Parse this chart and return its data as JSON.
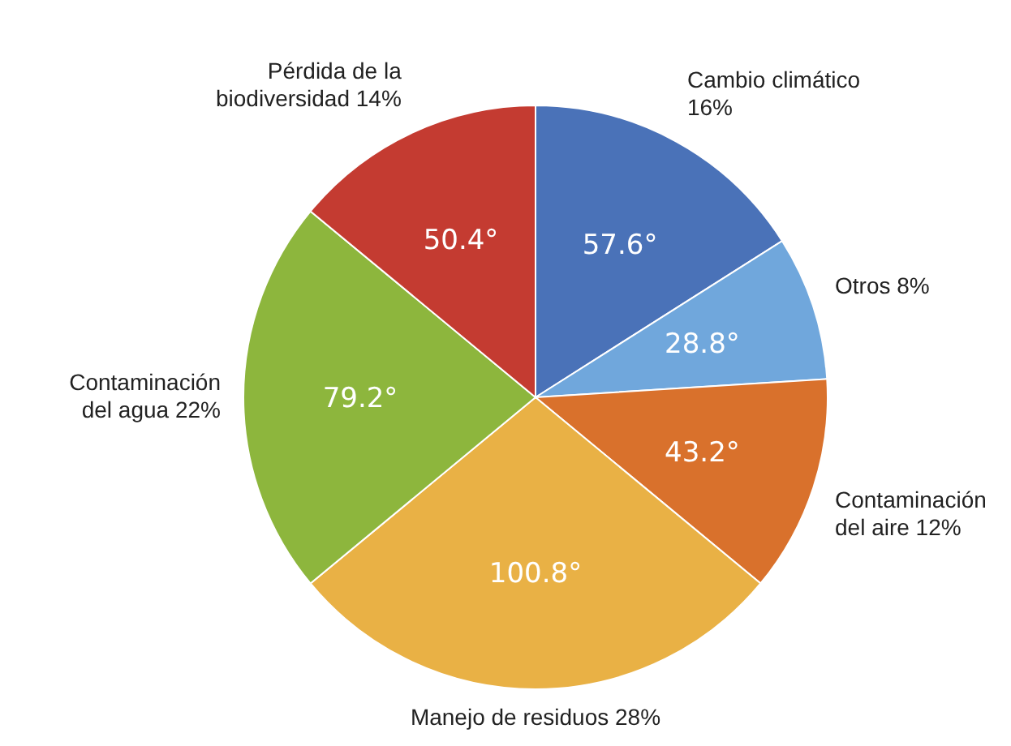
{
  "chart_data": {
    "type": "pie",
    "categories": [
      "Cambio climático 16%",
      "Otros 8%",
      "Contaminación del aire 12%",
      "Manejo de residuos 28%",
      "Contaminación del agua 22%",
      "Pérdida de la biodiversidad 14%"
    ],
    "values": [
      57.6,
      28.8,
      43.2,
      100.8,
      79.2,
      50.4
    ],
    "colors": [
      "#4a72b8",
      "#70a7dc",
      "#d9712c",
      "#e9b145",
      "#8db63d",
      "#c43b31"
    ],
    "value_labels": [
      "57.6°",
      "28.8°",
      "43.2°",
      "100.8°",
      "79.2°",
      "50.4°"
    ]
  }
}
